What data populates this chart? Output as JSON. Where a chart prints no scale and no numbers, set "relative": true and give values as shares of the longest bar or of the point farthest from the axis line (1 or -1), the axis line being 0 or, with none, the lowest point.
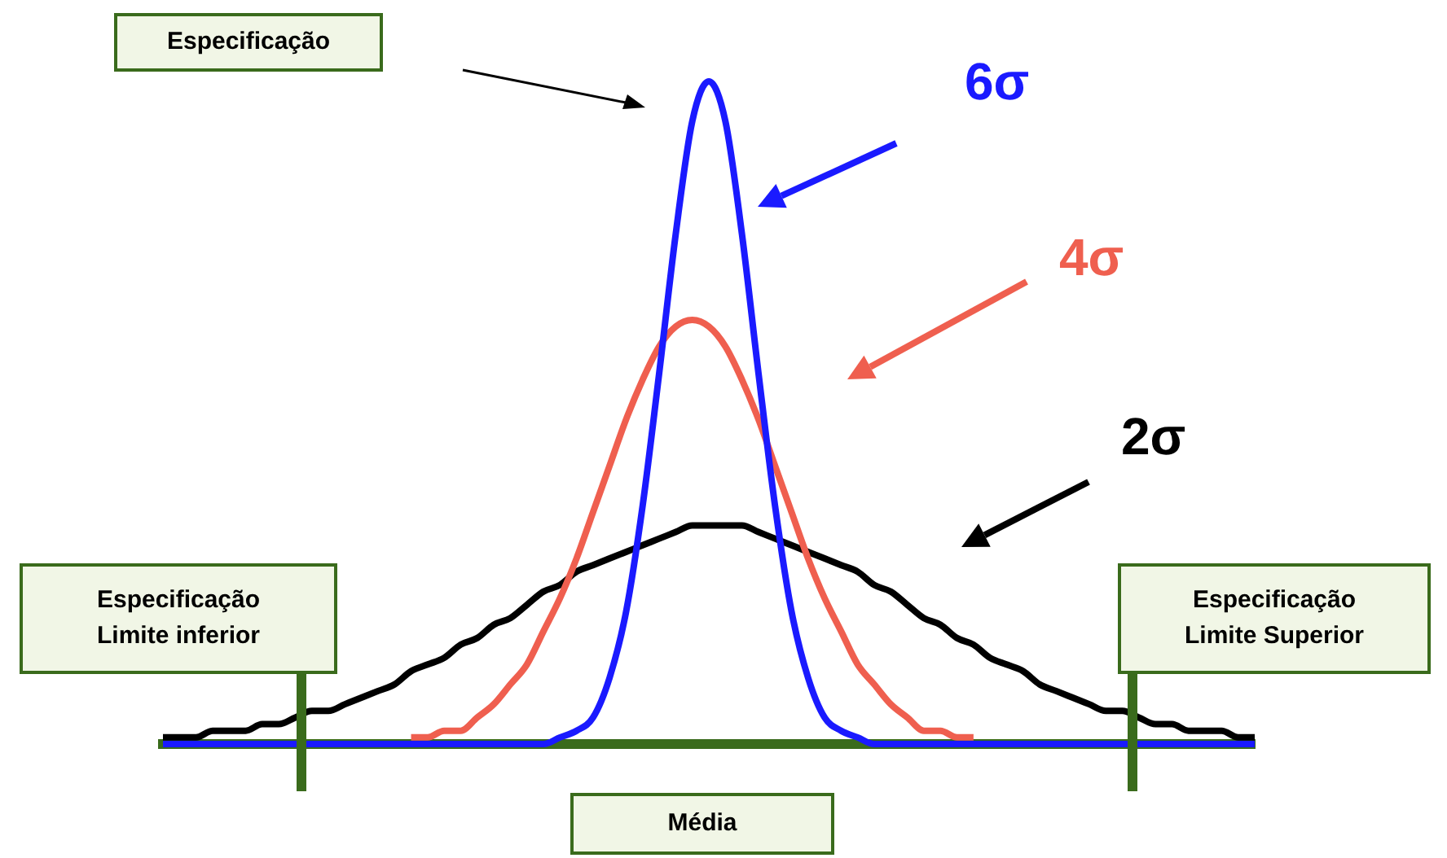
{
  "chart_data": {
    "type": "line",
    "relative": true,
    "legend": false,
    "grid": false,
    "marker": "none",
    "line_style": "solid",
    "categories": [
      null,
      null,
      null,
      null,
      null,
      null,
      null,
      null,
      null,
      null,
      null,
      null,
      null,
      null,
      null,
      null,
      null,
      null,
      null,
      null,
      null,
      null,
      null,
      null,
      null,
      null,
      null,
      null,
      null,
      null,
      null,
      null,
      null,
      null,
      null,
      null,
      null,
      null,
      null,
      null,
      null,
      null,
      null,
      null,
      null,
      null,
      null,
      null,
      null,
      null,
      null,
      null,
      null,
      null,
      null,
      null,
      null,
      null,
      null,
      null,
      null,
      null,
      null,
      null,
      null,
      null,
      null
    ],
    "series": [
      {
        "name": "2σ",
        "color": "#000000",
        "values": [
          0.01,
          0.01,
          0.01,
          0.02,
          0.02,
          0.02,
          0.03,
          0.03,
          0.04,
          0.05,
          0.05,
          0.06,
          0.07,
          0.08,
          0.09,
          0.11,
          0.12,
          0.13,
          0.15,
          0.16,
          0.18,
          0.19,
          0.21,
          0.23,
          0.24,
          0.26,
          0.27,
          0.28,
          0.29,
          0.3,
          0.31,
          0.32,
          0.33,
          0.33,
          0.33,
          0.33,
          0.32,
          0.31,
          0.3,
          0.29,
          0.28,
          0.27,
          0.26,
          0.24,
          0.23,
          0.21,
          0.19,
          0.18,
          0.16,
          0.15,
          0.13,
          0.12,
          0.11,
          0.09,
          0.08,
          0.07,
          0.06,
          0.05,
          0.05,
          0.04,
          0.03,
          0.03,
          0.02,
          0.02,
          0.02,
          0.01,
          0.01
        ]
      },
      {
        "name": "4σ",
        "color": "#ef5f4f",
        "values": [
          null,
          null,
          null,
          null,
          null,
          null,
          null,
          null,
          null,
          null,
          null,
          null,
          null,
          null,
          null,
          0.01,
          0.01,
          0.02,
          0.02,
          0.04,
          0.06,
          0.09,
          0.12,
          0.17,
          0.22,
          0.28,
          0.35,
          0.42,
          0.49,
          0.55,
          0.6,
          0.63,
          0.64,
          0.63,
          0.6,
          0.55,
          0.49,
          0.42,
          0.35,
          0.28,
          0.22,
          0.17,
          0.12,
          0.09,
          0.06,
          0.04,
          0.02,
          0.02,
          0.01,
          0.01,
          null,
          null,
          null,
          null,
          null,
          null,
          null,
          null,
          null,
          null,
          null,
          null,
          null,
          null,
          null,
          null,
          null
        ]
      },
      {
        "name": "6σ",
        "color": "#1a1aff",
        "values": [
          0,
          0,
          0,
          0,
          0,
          0,
          0,
          0,
          0,
          0,
          0,
          0,
          0,
          0,
          0,
          0,
          0,
          0,
          0,
          0,
          0,
          0,
          0,
          0,
          0.01,
          0.02,
          0.04,
          0.1,
          0.2,
          0.36,
          0.56,
          0.77,
          0.94,
          1,
          0.94,
          0.77,
          0.56,
          0.36,
          0.2,
          0.1,
          0.04,
          0.02,
          0.01,
          0,
          0,
          0,
          0,
          0,
          0,
          0,
          0,
          0,
          0,
          0,
          0,
          0,
          0,
          0,
          0,
          0,
          0,
          0,
          0,
          0,
          0,
          0,
          0
        ]
      }
    ],
    "annotations": [
      "Especificação",
      "Especificação\nLimite inferior",
      "Especificação\nLimite Superior",
      "Média"
    ]
  }
}
